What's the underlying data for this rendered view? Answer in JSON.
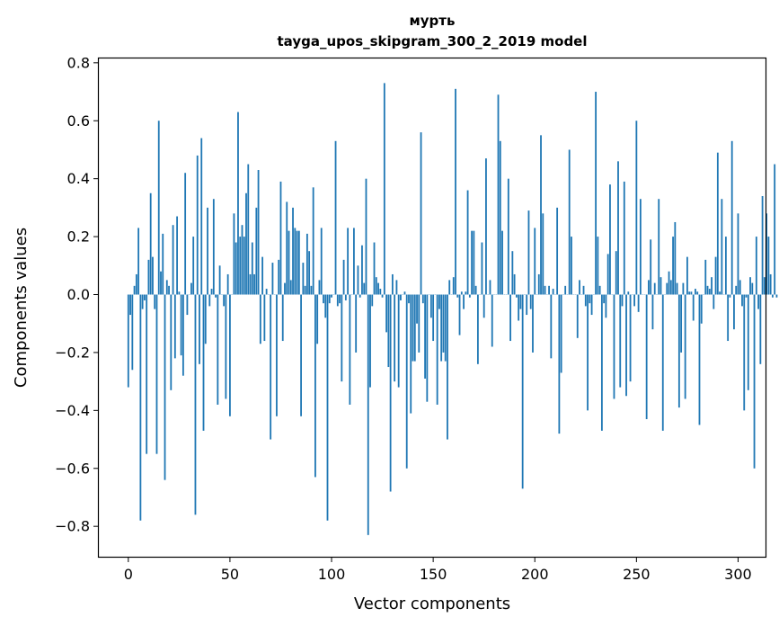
{
  "chart_data": {
    "type": "bar",
    "title": "мурть",
    "subtitle": "tayga_upos_skipgram_300_2_2019 model",
    "xlabel": "Vector components",
    "ylabel": "Components values",
    "xlim": [
      -14.5,
      313.5
    ],
    "ylim": [
      -0.905,
      0.815
    ],
    "xticks": [
      0,
      50,
      100,
      150,
      200,
      250,
      300
    ],
    "yticks": [
      -0.8,
      -0.6,
      -0.4,
      -0.2,
      0.0,
      0.2,
      0.4,
      0.6,
      0.8
    ],
    "ytick_labels": [
      "−0.8",
      "−0.6",
      "−0.4",
      "−0.2",
      "0.0",
      "0.2",
      "0.4",
      "0.6",
      "0.8"
    ],
    "bar_color": "#1f77b4",
    "values": [
      -0.32,
      -0.07,
      -0.26,
      0.03,
      0.07,
      0.23,
      -0.78,
      -0.05,
      -0.02,
      -0.55,
      0.12,
      0.35,
      0.13,
      -0.05,
      -0.55,
      0.6,
      0.08,
      0.21,
      -0.64,
      0.05,
      0.03,
      -0.33,
      0.24,
      -0.22,
      0.27,
      0.01,
      -0.21,
      -0.28,
      0.42,
      -0.07,
      0.0,
      0.04,
      0.2,
      -0.76,
      0.48,
      -0.24,
      0.54,
      -0.47,
      -0.17,
      0.3,
      -0.04,
      0.02,
      0.33,
      -0.01,
      -0.38,
      0.1,
      0.0,
      -0.04,
      -0.36,
      0.07,
      -0.42,
      0.0,
      0.28,
      0.18,
      0.63,
      0.2,
      0.24,
      0.2,
      0.35,
      0.45,
      0.07,
      0.18,
      0.07,
      0.3,
      0.43,
      -0.17,
      0.13,
      -0.16,
      0.02,
      0.0,
      -0.5,
      0.11,
      0.0,
      -0.42,
      0.12,
      0.39,
      -0.16,
      0.04,
      0.32,
      0.22,
      0.05,
      0.3,
      0.23,
      0.22,
      0.22,
      -0.42,
      0.11,
      0.03,
      0.21,
      0.15,
      0.03,
      0.37,
      -0.63,
      -0.17,
      0.05,
      0.23,
      -0.03,
      -0.08,
      -0.78,
      -0.03,
      -0.01,
      0.0,
      0.53,
      -0.04,
      -0.03,
      -0.3,
      0.12,
      -0.02,
      0.23,
      -0.38,
      0.0,
      0.23,
      -0.2,
      0.1,
      -0.01,
      0.17,
      0.04,
      0.4,
      -0.83,
      -0.32,
      -0.04,
      0.18,
      0.06,
      0.04,
      0.02,
      -0.01,
      0.73,
      -0.13,
      -0.25,
      -0.68,
      0.07,
      -0.3,
      0.05,
      -0.32,
      -0.02,
      0.0,
      0.01,
      -0.6,
      -0.03,
      -0.41,
      -0.23,
      -0.23,
      -0.1,
      -0.2,
      0.56,
      -0.03,
      -0.29,
      -0.37,
      0.0,
      -0.08,
      -0.16,
      0.0,
      -0.38,
      -0.05,
      -0.23,
      -0.2,
      -0.23,
      -0.5,
      0.05,
      0.0,
      0.06,
      0.71,
      -0.01,
      -0.14,
      0.01,
      -0.05,
      0.01,
      0.36,
      -0.01,
      0.22,
      0.22,
      0.03,
      -0.24,
      0.0,
      0.18,
      -0.08,
      0.47,
      0.0,
      0.05,
      -0.18,
      0.0,
      0.0,
      0.69,
      0.53,
      0.22,
      0.0,
      0.0,
      0.4,
      -0.16,
      0.15,
      0.07,
      -0.01,
      -0.09,
      -0.05,
      -0.67,
      0.0,
      -0.07,
      0.29,
      -0.05,
      -0.2,
      0.23,
      0.0,
      0.07,
      0.55,
      0.28,
      0.03,
      0.0,
      0.03,
      -0.22,
      0.02,
      0.0,
      0.3,
      -0.48,
      -0.27,
      0.0,
      0.03,
      0.0,
      0.5,
      0.2,
      0.0,
      0.0,
      -0.15,
      0.05,
      0.0,
      0.03,
      -0.04,
      -0.4,
      -0.03,
      -0.07,
      0.0,
      0.7,
      0.2,
      0.03,
      -0.47,
      -0.03,
      -0.08,
      0.14,
      0.38,
      0.0,
      -0.36,
      0.15,
      0.46,
      -0.32,
      -0.04,
      0.39,
      -0.35,
      0.01,
      -0.3,
      0.0,
      -0.04,
      0.6,
      -0.06,
      0.33,
      0.0,
      0.0,
      -0.43,
      0.05,
      0.19,
      -0.12,
      0.04,
      0.0,
      0.33,
      0.06,
      -0.47,
      0.0,
      0.04,
      0.08,
      0.05,
      0.2,
      0.25,
      0.04,
      -0.39,
      -0.2,
      0.04,
      -0.36,
      0.13,
      0.01,
      0.01,
      -0.09,
      0.02,
      0.01,
      -0.45,
      -0.1,
      0.0,
      0.12,
      0.03,
      0.02,
      0.06,
      -0.05,
      0.13,
      0.49,
      0.01,
      0.33,
      0.0,
      0.2,
      -0.16,
      -0.01,
      0.53,
      -0.12,
      0.03,
      0.28,
      0.05,
      -0.04,
      -0.4,
      -0.01,
      -0.33,
      0.06,
      0.04,
      -0.6,
      0.2,
      -0.05,
      -0.24,
      0.34,
      0.06,
      0.28,
      0.2,
      0.07,
      -0.01,
      0.45,
      -0.01
    ]
  }
}
